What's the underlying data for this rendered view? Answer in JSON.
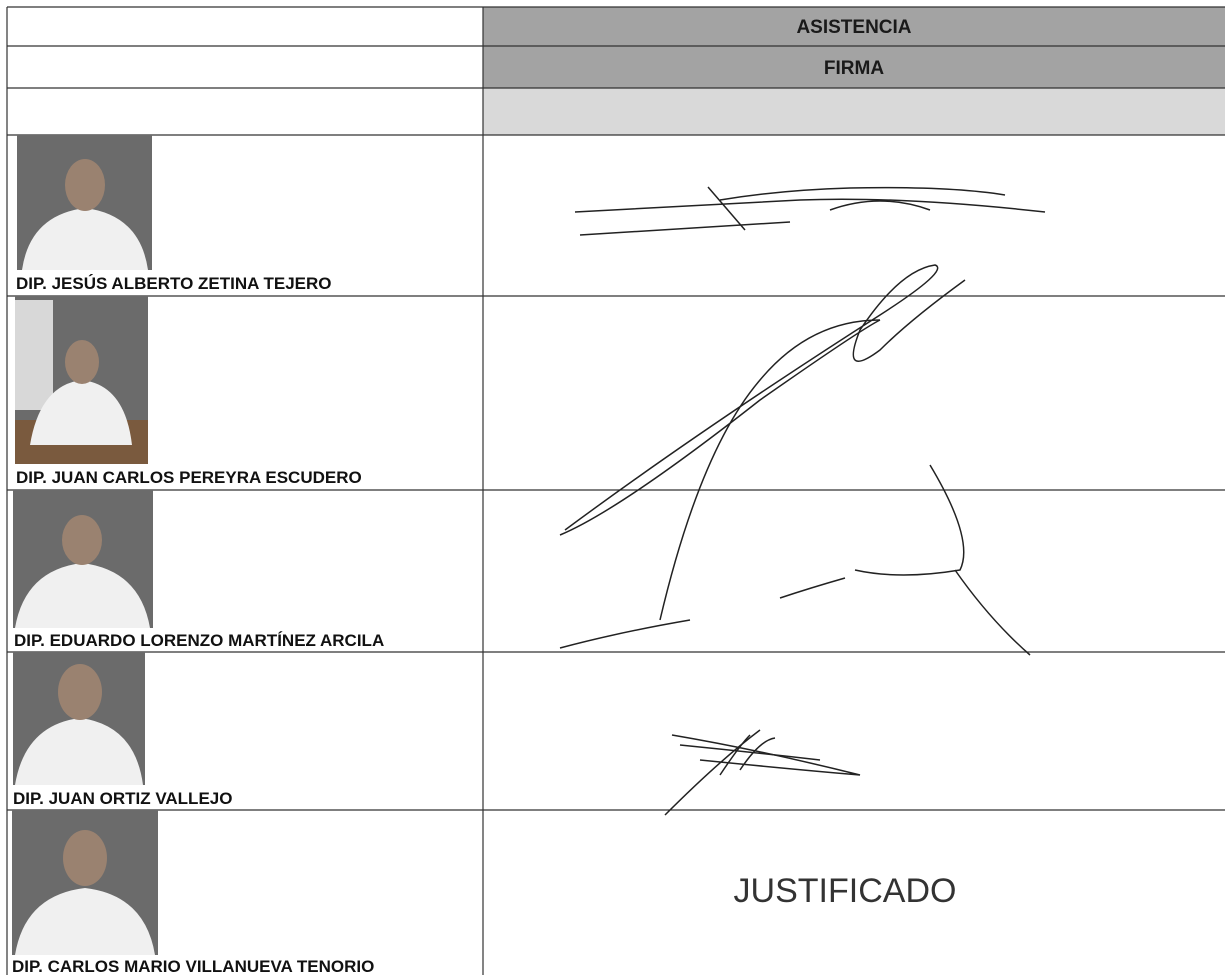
{
  "header": {
    "title": "ASISTENCIA",
    "subtitle": "FIRMA"
  },
  "rows": [
    {
      "name": "DIP. JESÚS ALBERTO ZETINA TEJERO"
    },
    {
      "name": "DIP. JUAN CARLOS PEREYRA ESCUDERO"
    },
    {
      "name": "DIP. EDUARDO LORENZO MARTÍNEZ ARCILA"
    },
    {
      "name": "DIP. JUAN ORTIZ VALLEJO"
    },
    {
      "name": "DIP. CARLOS MARIO VILLANUEVA TENORIO",
      "status": "JUSTIFICADO"
    }
  ]
}
